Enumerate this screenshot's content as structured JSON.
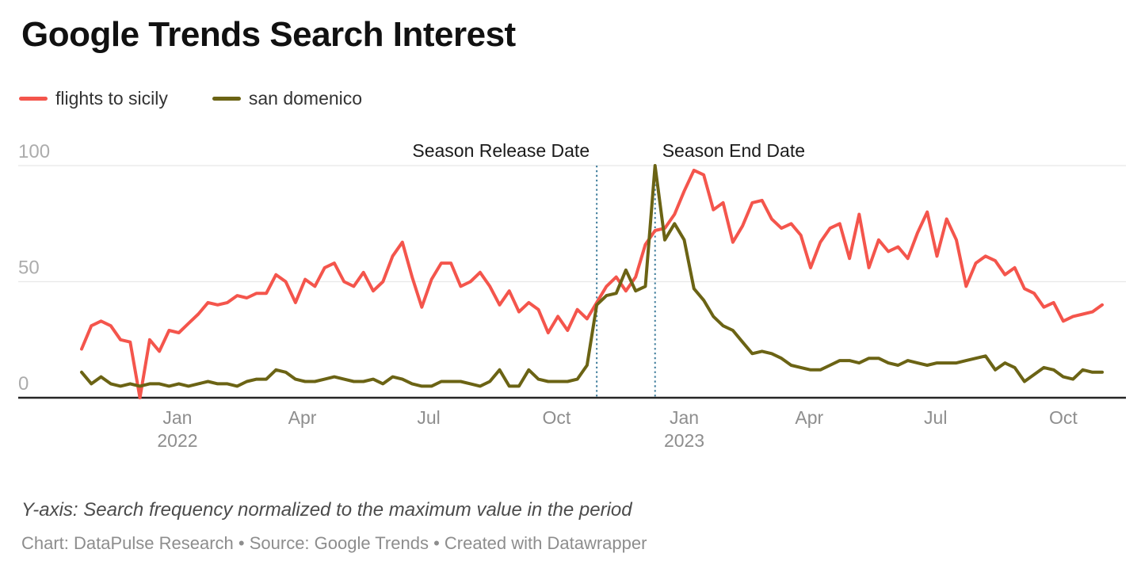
{
  "header": {
    "title": "Google Trends Search Interest"
  },
  "legend": [
    {
      "label": "flights to sicily",
      "color": "#F4554C"
    },
    {
      "label": "san domenico",
      "color": "#6B6314"
    }
  ],
  "footer": {
    "note": "Y-axis: Search frequency normalized to the maximum value in the period",
    "credit": "Chart: DataPulse Research • Source: Google Trends • Created with Datawrapper"
  },
  "chart_data": {
    "type": "line",
    "title": "Google Trends Search Interest",
    "x_interval": "weekly",
    "x_range_start": "late Oct 2021",
    "x_range_end": "late Oct 2023",
    "ylim": [
      0,
      100
    ],
    "y_ticks": [
      0,
      50,
      100
    ],
    "grid": "horizontal",
    "legend_position": "top-left",
    "x_ticks": [
      {
        "week": 9.86,
        "label": "Jan",
        "sublabel": "2022"
      },
      {
        "week": 22.71,
        "label": "Apr",
        "sublabel": ""
      },
      {
        "week": 35.71,
        "label": "Jul",
        "sublabel": ""
      },
      {
        "week": 48.86,
        "label": "Oct",
        "sublabel": ""
      },
      {
        "week": 62,
        "label": "Jan",
        "sublabel": "2023"
      },
      {
        "week": 74.86,
        "label": "Apr",
        "sublabel": ""
      },
      {
        "week": 87.86,
        "label": "Jul",
        "sublabel": ""
      },
      {
        "week": 101,
        "label": "Oct",
        "sublabel": ""
      }
    ],
    "events": [
      {
        "label": "Season Release Date",
        "week": 53,
        "label_side": "left"
      },
      {
        "label": "Season End Date",
        "week": 59,
        "label_side": "right"
      }
    ],
    "series": [
      {
        "name": "flights to sicily",
        "color": "#F4554C",
        "values": [
          21,
          31,
          33,
          31,
          25,
          24,
          0,
          25,
          20,
          29,
          28,
          32,
          36,
          41,
          40,
          41,
          44,
          43,
          45,
          45,
          53,
          50,
          41,
          51,
          48,
          56,
          58,
          50,
          48,
          54,
          46,
          50,
          61,
          67,
          52,
          39,
          51,
          58,
          58,
          48,
          50,
          54,
          48,
          40,
          46,
          37,
          41,
          38,
          28,
          35,
          29,
          38,
          34,
          41,
          48,
          52,
          46,
          52,
          66,
          72,
          73,
          79,
          89,
          98,
          96,
          81,
          84,
          67,
          74,
          84,
          85,
          77,
          73,
          75,
          70,
          56,
          67,
          73,
          75,
          60,
          79,
          56,
          68,
          63,
          65,
          60,
          71,
          80,
          61,
          77,
          68,
          48,
          58,
          61,
          59,
          53,
          56,
          47,
          45,
          39,
          41,
          33,
          35,
          36,
          37,
          40
        ]
      },
      {
        "name": "san domenico",
        "color": "#6B6314",
        "values": [
          11,
          6,
          9,
          6,
          5,
          6,
          5,
          6,
          6,
          5,
          6,
          5,
          6,
          7,
          6,
          6,
          5,
          7,
          8,
          8,
          12,
          11,
          8,
          7,
          7,
          8,
          9,
          8,
          7,
          7,
          8,
          6,
          9,
          8,
          6,
          5,
          5,
          7,
          7,
          7,
          6,
          5,
          7,
          12,
          5,
          5,
          12,
          8,
          7,
          7,
          7,
          8,
          14,
          40,
          44,
          45,
          55,
          46,
          48,
          100,
          68,
          75,
          68,
          47,
          42,
          35,
          31,
          29,
          24,
          19,
          20,
          19,
          17,
          14,
          13,
          12,
          12,
          14,
          16,
          16,
          15,
          17,
          17,
          15,
          14,
          16,
          15,
          14,
          15,
          15,
          15,
          16,
          17,
          18,
          12,
          15,
          13,
          7,
          10,
          13,
          12,
          9,
          8,
          12,
          11,
          11
        ]
      }
    ],
    "style": {
      "gridline_color": "#E8E8E8",
      "axis_line_color": "#262626",
      "y_tick_label_color": "#ACACAC",
      "x_tick_label_color": "#8E8E8E",
      "annotation_color": "#1B1B1B",
      "event_line_color": "#3E7C9B"
    }
  }
}
